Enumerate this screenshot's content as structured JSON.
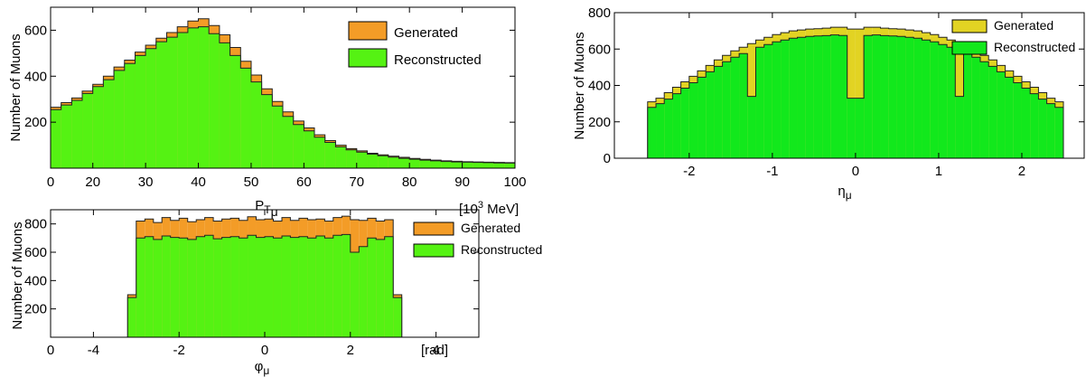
{
  "chart_data": [
    {
      "type": "histogram",
      "id": "pt",
      "xlabel_base": "P",
      "xlabel_sub": "T",
      "xlabel_subsub": "μ",
      "unit_text": "[10",
      "unit_sup": "3",
      "unit_tail": " MeV]",
      "ylabel": "Number of Muons",
      "xlim": [
        12,
        100
      ],
      "ylim": [
        0,
        700
      ],
      "x_ticks": [
        "0",
        "20",
        "30",
        "40",
        "50",
        "60",
        "70",
        "80",
        "90",
        "100"
      ],
      "y_ticks": [
        "200",
        "400",
        "600"
      ],
      "legend": [
        "Generated",
        "Reconstructed"
      ],
      "legend_position": "top-right",
      "colors": {
        "generated": "#f39c27",
        "reconstructed": "#55f213"
      },
      "series": [
        {
          "name": "Generated",
          "x": [
            13,
            15,
            17,
            19,
            21,
            23,
            25,
            27,
            29,
            31,
            33,
            35,
            37,
            39,
            41,
            43,
            45,
            47,
            49,
            51,
            53,
            55,
            57,
            59,
            61,
            63,
            65,
            67,
            69,
            71,
            73,
            75,
            77,
            79,
            81,
            83,
            85,
            87,
            89,
            91,
            93,
            95,
            97,
            99
          ],
          "values": [
            265,
            285,
            305,
            335,
            365,
            400,
            440,
            470,
            505,
            535,
            565,
            590,
            615,
            640,
            650,
            620,
            580,
            525,
            465,
            405,
            345,
            290,
            245,
            205,
            175,
            145,
            120,
            100,
            85,
            75,
            65,
            58,
            52,
            47,
            42,
            38,
            35,
            32,
            30,
            28,
            27,
            26,
            25,
            24
          ]
        },
        {
          "name": "Reconstructed",
          "x": [
            13,
            15,
            17,
            19,
            21,
            23,
            25,
            27,
            29,
            31,
            33,
            35,
            37,
            39,
            41,
            43,
            45,
            47,
            49,
            51,
            53,
            55,
            57,
            59,
            61,
            63,
            65,
            67,
            69,
            71,
            73,
            75,
            77,
            79,
            81,
            83,
            85,
            87,
            89,
            91,
            93,
            95,
            97,
            99
          ],
          "values": [
            255,
            275,
            295,
            325,
            355,
            385,
            425,
            455,
            490,
            520,
            550,
            570,
            590,
            610,
            615,
            585,
            545,
            490,
            435,
            375,
            320,
            270,
            225,
            190,
            162,
            135,
            112,
            93,
            80,
            70,
            61,
            54,
            48,
            43,
            39,
            35,
            32,
            29,
            27,
            26,
            25,
            24,
            23,
            22
          ]
        }
      ]
    },
    {
      "type": "histogram",
      "id": "eta",
      "xlabel_base": "η",
      "xlabel_sub": "μ",
      "ylabel": "Number of Muons",
      "xlim": [
        -2.9,
        2.75
      ],
      "ylim": [
        0,
        800
      ],
      "x_ticks": [
        "-2",
        "-1",
        "0",
        "1",
        "2"
      ],
      "y_ticks": [
        "0",
        "200",
        "400",
        "600",
        "800"
      ],
      "legend": [
        "Generated",
        "Reconstructed"
      ],
      "legend_position": "top-right",
      "colors": {
        "generated": "#e2d323",
        "reconstructed": "#12e81c"
      },
      "series": [
        {
          "name": "Generated",
          "x": [
            -2.45,
            -2.35,
            -2.25,
            -2.15,
            -2.05,
            -1.95,
            -1.85,
            -1.75,
            -1.65,
            -1.55,
            -1.45,
            -1.35,
            -1.25,
            -1.15,
            -1.05,
            -0.95,
            -0.85,
            -0.75,
            -0.65,
            -0.55,
            -0.45,
            -0.35,
            -0.25,
            -0.15,
            -0.05,
            0.05,
            0.15,
            0.25,
            0.35,
            0.45,
            0.55,
            0.65,
            0.75,
            0.85,
            0.95,
            1.05,
            1.15,
            1.25,
            1.35,
            1.45,
            1.55,
            1.65,
            1.75,
            1.85,
            1.95,
            2.05,
            2.15,
            2.25,
            2.35,
            2.45
          ],
          "values": [
            310,
            330,
            360,
            390,
            420,
            450,
            480,
            510,
            540,
            565,
            590,
            610,
            630,
            650,
            665,
            680,
            690,
            700,
            705,
            710,
            712,
            715,
            720,
            720,
            710,
            710,
            720,
            720,
            715,
            712,
            710,
            705,
            700,
            690,
            680,
            665,
            650,
            630,
            610,
            590,
            565,
            540,
            510,
            480,
            450,
            420,
            390,
            360,
            330,
            310
          ]
        },
        {
          "name": "Reconstructed",
          "x": [
            -2.45,
            -2.35,
            -2.25,
            -2.15,
            -2.05,
            -1.95,
            -1.85,
            -1.75,
            -1.65,
            -1.55,
            -1.45,
            -1.35,
            -1.25,
            -1.15,
            -1.05,
            -0.95,
            -0.85,
            -0.75,
            -0.65,
            -0.55,
            -0.45,
            -0.35,
            -0.25,
            -0.15,
            -0.05,
            0.05,
            0.15,
            0.25,
            0.35,
            0.45,
            0.55,
            0.65,
            0.75,
            0.85,
            0.95,
            1.05,
            1.15,
            1.25,
            1.35,
            1.45,
            1.55,
            1.65,
            1.75,
            1.85,
            1.95,
            2.05,
            2.15,
            2.25,
            2.35,
            2.45
          ],
          "values": [
            280,
            300,
            325,
            355,
            385,
            415,
            445,
            475,
            505,
            530,
            555,
            575,
            340,
            610,
            625,
            640,
            650,
            660,
            665,
            670,
            672,
            674,
            678,
            675,
            330,
            330,
            675,
            678,
            674,
            672,
            670,
            665,
            660,
            650,
            640,
            625,
            610,
            340,
            575,
            555,
            530,
            505,
            475,
            445,
            415,
            385,
            355,
            325,
            300,
            280
          ]
        }
      ]
    },
    {
      "type": "histogram",
      "id": "phi",
      "xlabel_base": "φ",
      "xlabel_sub": "μ",
      "unit_text": "[rad]",
      "ylabel": "Number of Muons",
      "xlim": [
        -5,
        5
      ],
      "ylim": [
        0,
        900
      ],
      "x_ticks": [
        "0",
        "-4",
        "-2",
        "0",
        "2",
        "4"
      ],
      "y_ticks": [
        "200",
        "400",
        "600",
        "800"
      ],
      "legend": [
        "Generated",
        "Reconstructed"
      ],
      "legend_position": "top-right",
      "colors": {
        "generated": "#f39c27",
        "reconstructed": "#55f213"
      },
      "series": [
        {
          "name": "Generated",
          "x": [
            -3.1,
            -2.9,
            -2.7,
            -2.5,
            -2.3,
            -2.1,
            -1.9,
            -1.7,
            -1.5,
            -1.3,
            -1.1,
            -0.9,
            -0.7,
            -0.5,
            -0.3,
            -0.1,
            0.1,
            0.3,
            0.5,
            0.7,
            0.9,
            1.1,
            1.3,
            1.5,
            1.7,
            1.9,
            2.1,
            2.3,
            2.5,
            2.7,
            2.9,
            3.1
          ],
          "values": [
            300,
            820,
            835,
            810,
            845,
            825,
            840,
            815,
            830,
            845,
            820,
            835,
            840,
            825,
            850,
            830,
            835,
            820,
            845,
            825,
            840,
            830,
            835,
            820,
            845,
            855,
            830,
            825,
            840,
            820,
            830,
            300
          ]
        },
        {
          "name": "Reconstructed",
          "x": [
            -3.1,
            -2.9,
            -2.7,
            -2.5,
            -2.3,
            -2.1,
            -1.9,
            -1.7,
            -1.5,
            -1.3,
            -1.1,
            -0.9,
            -0.7,
            -0.5,
            -0.3,
            -0.1,
            0.1,
            0.3,
            0.5,
            0.7,
            0.9,
            1.1,
            1.3,
            1.5,
            1.7,
            1.9,
            2.1,
            2.3,
            2.5,
            2.7,
            2.9,
            3.1
          ],
          "values": [
            280,
            700,
            710,
            690,
            715,
            705,
            700,
            690,
            710,
            720,
            695,
            705,
            710,
            700,
            720,
            705,
            710,
            700,
            715,
            705,
            710,
            700,
            715,
            700,
            720,
            725,
            600,
            640,
            700,
            690,
            710,
            280
          ]
        }
      ]
    }
  ]
}
